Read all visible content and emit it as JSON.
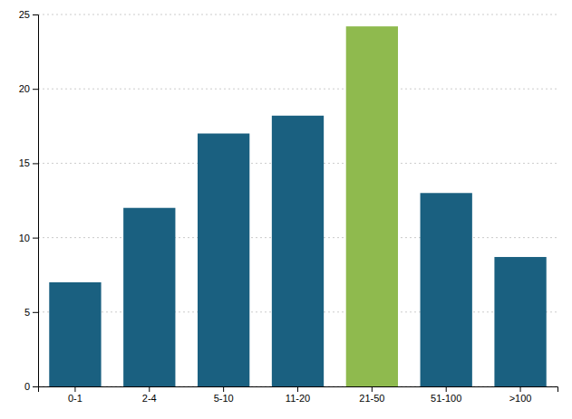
{
  "chart_data": {
    "type": "bar",
    "categories": [
      "0-1",
      "2-4",
      "5-10",
      "11-20",
      "21-50",
      "51-100",
      ">100"
    ],
    "values": [
      7.0,
      12.0,
      17.0,
      18.2,
      24.2,
      13.0,
      8.7
    ],
    "colors": [
      "#1a6080",
      "#1a6080",
      "#1a6080",
      "#1a6080",
      "#8fba4e",
      "#1a6080",
      "#1a6080"
    ],
    "ylim": [
      0,
      25
    ],
    "yticks": [
      0,
      5,
      10,
      15,
      20,
      25
    ],
    "grid": true
  }
}
